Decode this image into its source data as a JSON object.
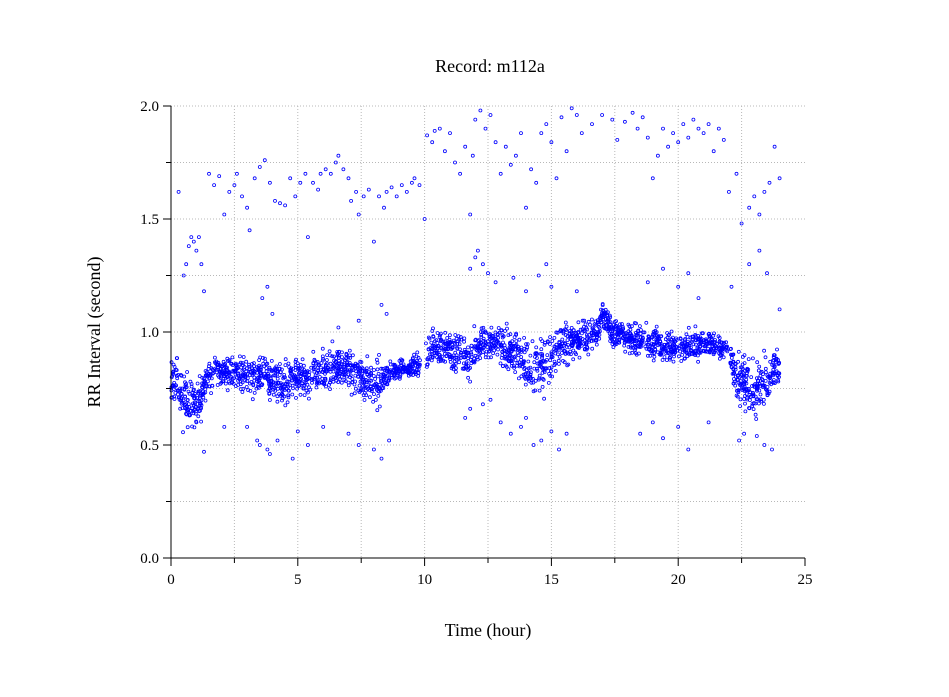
{
  "chart_data": {
    "type": "scatter",
    "title": "Record:  m112a",
    "xlabel": "Time (hour)",
    "ylabel": "RR Interval (second)",
    "xlim": [
      0,
      25
    ],
    "ylim": [
      0,
      2.0
    ],
    "xticks": [
      0,
      5,
      10,
      15,
      20,
      25
    ],
    "yticks": [
      0.0,
      0.5,
      1.0,
      1.5,
      2.0
    ],
    "xtick_labels": [
      "0",
      "5",
      "10",
      "15",
      "20",
      "25"
    ],
    "ytick_labels": [
      "0.0",
      "0.5",
      "1.0",
      "1.5",
      "2.0"
    ],
    "grid": true,
    "marker_color": "#0000ff",
    "series": [
      {
        "trend": [
          [
            0.0,
            0.8,
            0.05
          ],
          [
            0.2,
            0.78,
            0.06
          ],
          [
            0.5,
            0.7,
            0.07
          ],
          [
            0.8,
            0.68,
            0.07
          ],
          [
            1.2,
            0.7,
            0.07
          ],
          [
            1.4,
            0.8,
            0.04
          ],
          [
            1.8,
            0.82,
            0.04
          ],
          [
            2.5,
            0.82,
            0.04
          ],
          [
            3.0,
            0.8,
            0.05
          ],
          [
            3.6,
            0.82,
            0.05
          ],
          [
            4.0,
            0.78,
            0.05
          ],
          [
            4.6,
            0.78,
            0.05
          ],
          [
            5.2,
            0.8,
            0.05
          ],
          [
            5.8,
            0.82,
            0.05
          ],
          [
            6.5,
            0.85,
            0.05
          ],
          [
            7.2,
            0.82,
            0.05
          ],
          [
            7.8,
            0.78,
            0.06
          ],
          [
            8.2,
            0.78,
            0.06
          ],
          [
            8.6,
            0.82,
            0.03
          ],
          [
            9.2,
            0.84,
            0.02
          ],
          [
            9.9,
            0.85,
            0.03
          ],
          [
            10.2,
            0.93,
            0.05
          ],
          [
            11.0,
            0.92,
            0.05
          ],
          [
            11.8,
            0.88,
            0.06
          ],
          [
            12.2,
            0.95,
            0.04
          ],
          [
            12.8,
            0.95,
            0.05
          ],
          [
            13.5,
            0.9,
            0.06
          ],
          [
            14.2,
            0.85,
            0.07
          ],
          [
            14.8,
            0.88,
            0.07
          ],
          [
            15.5,
            0.95,
            0.06
          ],
          [
            16.2,
            0.97,
            0.05
          ],
          [
            16.8,
            1.0,
            0.04
          ],
          [
            17.0,
            1.08,
            0.04
          ],
          [
            17.4,
            1.0,
            0.04
          ],
          [
            18.0,
            0.98,
            0.04
          ],
          [
            18.8,
            0.96,
            0.04
          ],
          [
            19.5,
            0.93,
            0.04
          ],
          [
            20.5,
            0.94,
            0.04
          ],
          [
            21.2,
            0.95,
            0.03
          ],
          [
            21.9,
            0.93,
            0.03
          ],
          [
            22.2,
            0.82,
            0.06
          ],
          [
            22.6,
            0.78,
            0.07
          ],
          [
            23.0,
            0.72,
            0.08
          ],
          [
            23.5,
            0.78,
            0.06
          ],
          [
            24.0,
            0.85,
            0.04
          ]
        ],
        "gaps": [
          [
            9.85,
            10.05
          ],
          [
            21.95,
            22.05
          ]
        ],
        "outliers": [
          [
            0.3,
            1.62
          ],
          [
            0.5,
            1.25
          ],
          [
            0.6,
            1.3
          ],
          [
            0.7,
            1.38
          ],
          [
            0.8,
            1.42
          ],
          [
            0.9,
            1.4
          ],
          [
            1.0,
            1.36
          ],
          [
            1.1,
            1.42
          ],
          [
            1.2,
            1.3
          ],
          [
            1.3,
            1.18
          ],
          [
            1.5,
            1.7
          ],
          [
            1.7,
            1.65
          ],
          [
            1.9,
            1.69
          ],
          [
            2.1,
            1.52
          ],
          [
            2.3,
            1.62
          ],
          [
            2.5,
            1.65
          ],
          [
            2.6,
            1.7
          ],
          [
            2.8,
            1.6
          ],
          [
            3.0,
            1.55
          ],
          [
            3.1,
            1.45
          ],
          [
            3.3,
            1.68
          ],
          [
            3.5,
            1.73
          ],
          [
            3.7,
            1.76
          ],
          [
            3.9,
            1.66
          ],
          [
            4.1,
            1.58
          ],
          [
            4.3,
            1.57
          ],
          [
            4.5,
            1.56
          ],
          [
            4.7,
            1.68
          ],
          [
            4.9,
            1.6
          ],
          [
            5.1,
            1.66
          ],
          [
            5.3,
            1.7
          ],
          [
            5.4,
            1.42
          ],
          [
            5.6,
            1.66
          ],
          [
            5.8,
            1.63
          ],
          [
            5.9,
            1.7
          ],
          [
            6.1,
            1.72
          ],
          [
            6.3,
            1.7
          ],
          [
            6.5,
            1.75
          ],
          [
            6.6,
            1.78
          ],
          [
            6.8,
            1.72
          ],
          [
            7.0,
            1.68
          ],
          [
            7.1,
            1.58
          ],
          [
            7.3,
            1.62
          ],
          [
            7.4,
            1.52
          ],
          [
            7.6,
            1.6
          ],
          [
            7.8,
            1.63
          ],
          [
            8.0,
            1.4
          ],
          [
            8.2,
            1.6
          ],
          [
            8.4,
            1.55
          ],
          [
            8.5,
            1.62
          ],
          [
            8.7,
            1.64
          ],
          [
            8.9,
            1.6
          ],
          [
            9.1,
            1.65
          ],
          [
            9.3,
            1.62
          ],
          [
            9.5,
            1.66
          ],
          [
            9.6,
            1.68
          ],
          [
            9.8,
            1.65
          ],
          [
            10.0,
            1.5
          ],
          [
            10.1,
            1.87
          ],
          [
            10.3,
            1.84
          ],
          [
            10.4,
            1.89
          ],
          [
            10.6,
            1.9
          ],
          [
            10.8,
            1.8
          ],
          [
            11.0,
            1.88
          ],
          [
            11.2,
            1.75
          ],
          [
            11.4,
            1.7
          ],
          [
            11.6,
            1.82
          ],
          [
            11.8,
            1.52
          ],
          [
            11.9,
            1.78
          ],
          [
            12.0,
            1.94
          ],
          [
            12.2,
            1.98
          ],
          [
            12.4,
            1.9
          ],
          [
            12.6,
            1.96
          ],
          [
            12.8,
            1.84
          ],
          [
            13.0,
            1.7
          ],
          [
            13.2,
            1.82
          ],
          [
            13.4,
            1.74
          ],
          [
            13.6,
            1.78
          ],
          [
            13.8,
            1.88
          ],
          [
            14.0,
            1.55
          ],
          [
            14.2,
            1.72
          ],
          [
            14.4,
            1.66
          ],
          [
            14.6,
            1.88
          ],
          [
            14.8,
            1.92
          ],
          [
            15.0,
            1.84
          ],
          [
            15.2,
            1.68
          ],
          [
            15.4,
            1.95
          ],
          [
            15.6,
            1.8
          ],
          [
            15.8,
            1.99
          ],
          [
            16.0,
            1.96
          ],
          [
            16.2,
            1.88
          ],
          [
            16.6,
            1.92
          ],
          [
            17.0,
            1.96
          ],
          [
            17.4,
            1.94
          ],
          [
            17.6,
            1.85
          ],
          [
            17.9,
            1.93
          ],
          [
            18.2,
            1.97
          ],
          [
            18.4,
            1.9
          ],
          [
            18.6,
            1.95
          ],
          [
            18.8,
            1.86
          ],
          [
            19.0,
            1.68
          ],
          [
            19.2,
            1.78
          ],
          [
            19.4,
            1.9
          ],
          [
            19.6,
            1.82
          ],
          [
            19.8,
            1.88
          ],
          [
            20.0,
            1.84
          ],
          [
            20.2,
            1.92
          ],
          [
            20.4,
            1.86
          ],
          [
            20.6,
            1.94
          ],
          [
            20.8,
            1.9
          ],
          [
            21.0,
            1.88
          ],
          [
            21.2,
            1.92
          ],
          [
            21.4,
            1.8
          ],
          [
            21.6,
            1.9
          ],
          [
            21.8,
            1.85
          ],
          [
            22.0,
            1.62
          ],
          [
            22.3,
            1.7
          ],
          [
            22.5,
            1.48
          ],
          [
            22.8,
            1.55
          ],
          [
            23.0,
            1.6
          ],
          [
            23.2,
            1.52
          ],
          [
            23.4,
            1.62
          ],
          [
            23.6,
            1.66
          ],
          [
            23.8,
            1.82
          ],
          [
            24.0,
            1.68
          ],
          [
            1.0,
            0.6
          ],
          [
            1.3,
            0.47
          ],
          [
            2.1,
            0.58
          ],
          [
            3.0,
            0.58
          ],
          [
            3.4,
            0.52
          ],
          [
            3.5,
            0.5
          ],
          [
            3.8,
            0.48
          ],
          [
            3.9,
            0.46
          ],
          [
            4.2,
            0.52
          ],
          [
            4.8,
            0.44
          ],
          [
            5.0,
            0.56
          ],
          [
            5.4,
            0.5
          ],
          [
            6.0,
            0.58
          ],
          [
            7.0,
            0.55
          ],
          [
            7.4,
            0.5
          ],
          [
            8.0,
            0.48
          ],
          [
            8.3,
            0.44
          ],
          [
            8.6,
            0.52
          ],
          [
            11.6,
            0.62
          ],
          [
            11.8,
            0.66
          ],
          [
            12.3,
            0.68
          ],
          [
            12.6,
            0.7
          ],
          [
            13.0,
            0.6
          ],
          [
            13.4,
            0.55
          ],
          [
            13.8,
            0.58
          ],
          [
            14.0,
            0.62
          ],
          [
            14.3,
            0.5
          ],
          [
            14.6,
            0.52
          ],
          [
            15.0,
            0.56
          ],
          [
            15.3,
            0.48
          ],
          [
            15.6,
            0.55
          ],
          [
            18.5,
            0.55
          ],
          [
            19.0,
            0.6
          ],
          [
            19.4,
            0.53
          ],
          [
            20.0,
            0.58
          ],
          [
            20.4,
            0.48
          ],
          [
            21.2,
            0.6
          ],
          [
            22.4,
            0.52
          ],
          [
            22.6,
            0.55
          ],
          [
            23.1,
            0.54
          ],
          [
            23.4,
            0.5
          ],
          [
            23.7,
            0.48
          ],
          [
            3.6,
            1.15
          ],
          [
            3.8,
            1.2
          ],
          [
            4.0,
            1.08
          ],
          [
            6.6,
            1.02
          ],
          [
            7.4,
            1.05
          ],
          [
            8.3,
            1.12
          ],
          [
            8.5,
            1.08
          ],
          [
            11.8,
            1.28
          ],
          [
            12.0,
            1.33
          ],
          [
            12.1,
            1.36
          ],
          [
            12.3,
            1.3
          ],
          [
            12.5,
            1.26
          ],
          [
            12.8,
            1.22
          ],
          [
            13.5,
            1.24
          ],
          [
            14.0,
            1.18
          ],
          [
            14.5,
            1.25
          ],
          [
            14.8,
            1.3
          ],
          [
            15.0,
            1.2
          ],
          [
            16.0,
            1.18
          ],
          [
            18.8,
            1.22
          ],
          [
            19.4,
            1.28
          ],
          [
            20.0,
            1.2
          ],
          [
            20.4,
            1.26
          ],
          [
            20.8,
            1.15
          ],
          [
            22.1,
            1.2
          ],
          [
            22.8,
            1.3
          ],
          [
            23.2,
            1.36
          ],
          [
            23.5,
            1.26
          ],
          [
            24.0,
            1.1
          ]
        ]
      }
    ]
  }
}
